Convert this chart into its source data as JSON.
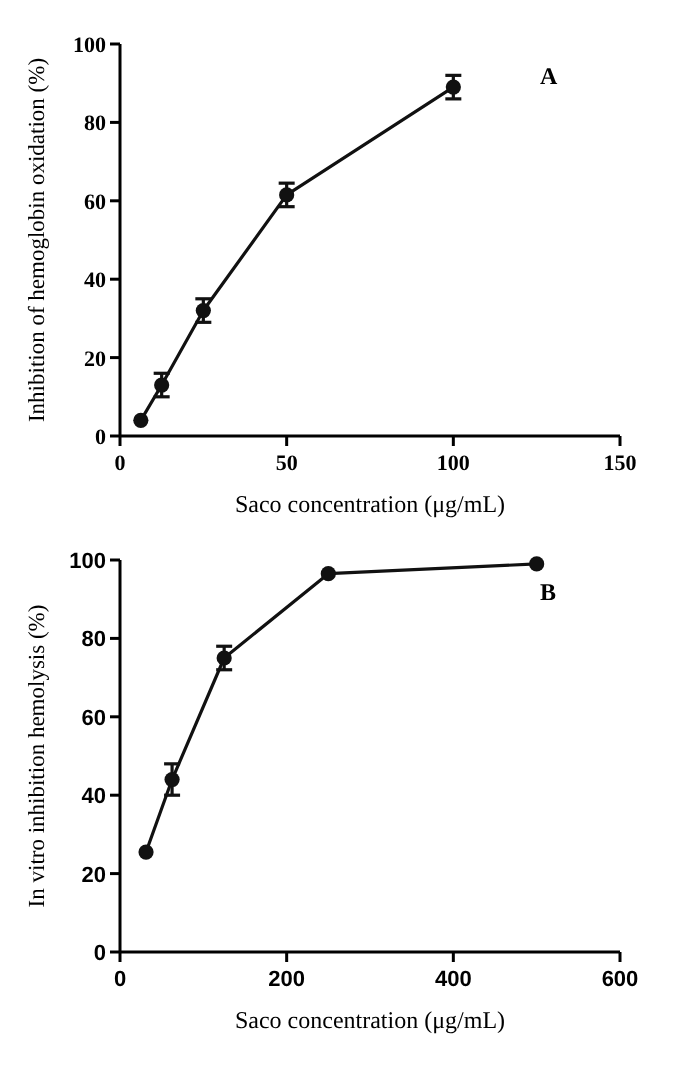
{
  "chart_data": [
    {
      "type": "line",
      "xlabel": "Saco concentration (μg/mL)",
      "ylabel": "Inhibition of hemoglobin oxidation (%)",
      "annotations": [
        "A"
      ],
      "x": [
        6.25,
        12.5,
        25,
        50,
        100
      ],
      "series": [
        {
          "color": "#111111",
          "values": [
            4,
            13,
            32,
            61.5,
            89
          ],
          "errors": [
            null,
            3,
            3,
            3,
            3
          ]
        }
      ],
      "xlim": [
        0,
        150
      ],
      "xticks": [
        0,
        50,
        100,
        150
      ],
      "ylim": [
        0,
        100
      ],
      "yticks": [
        0,
        20,
        40,
        60,
        80,
        100
      ],
      "marker": "circle",
      "line_style": "solid",
      "grid": false
    },
    {
      "type": "line",
      "xlabel": "Saco concentration (μg/mL)",
      "ylabel": "In vitro inhibition hemolysis (%)",
      "annotations": [
        "B"
      ],
      "x": [
        31.25,
        62.5,
        125,
        250,
        500
      ],
      "series": [
        {
          "color": "#111111",
          "values": [
            25.5,
            44,
            75,
            96.5,
            99
          ],
          "errors": [
            null,
            4,
            3,
            null,
            null
          ]
        }
      ],
      "xlim": [
        0,
        600
      ],
      "xticks": [
        0,
        200,
        400,
        600
      ],
      "ylim": [
        0,
        100
      ],
      "yticks": [
        0,
        20,
        40,
        60,
        80,
        100
      ],
      "marker": "circle",
      "line_style": "solid",
      "grid": false
    }
  ]
}
